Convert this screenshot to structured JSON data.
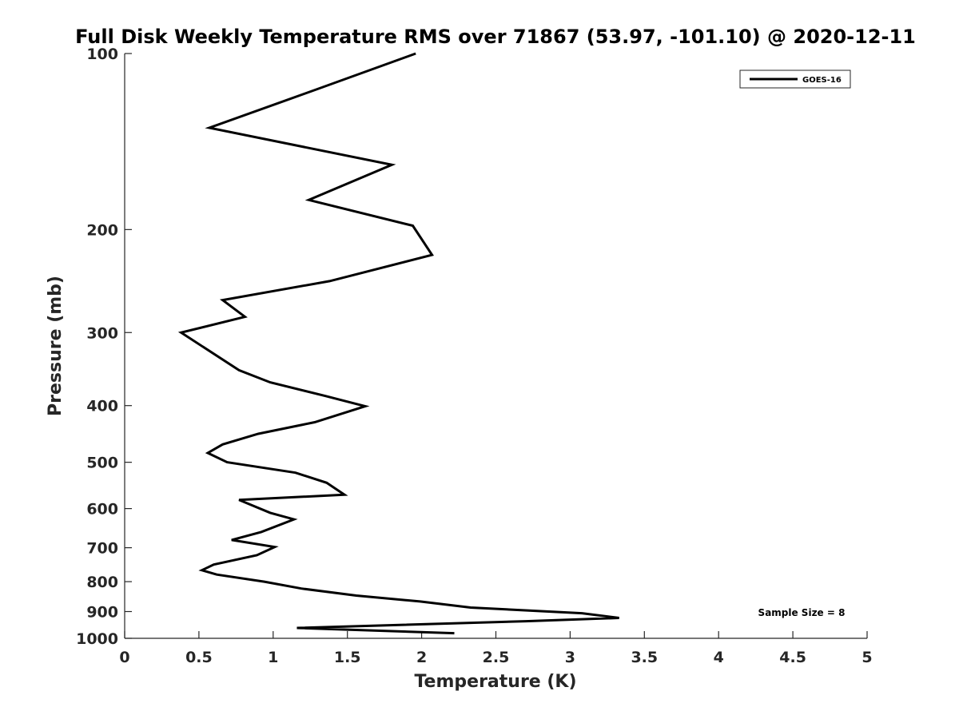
{
  "chart_data": {
    "type": "line",
    "title": "Full Disk Weekly Temperature RMS over 71867 (53.97, -101.10) @ 2020-12-11",
    "xlabel": "Temperature (K)",
    "ylabel": "Pressure (mb)",
    "xlim": [
      0,
      5
    ],
    "ylim": [
      100,
      1000
    ],
    "y_scale": "log",
    "y_reversed": true,
    "x_ticks": [
      0,
      0.5,
      1,
      1.5,
      2,
      2.5,
      3,
      3.5,
      4,
      4.5,
      5
    ],
    "x_tick_labels": [
      "0",
      "0.5",
      "1",
      "1.5",
      "2",
      "2.5",
      "3",
      "3.5",
      "4",
      "4.5",
      "5"
    ],
    "y_ticks": [
      100,
      200,
      300,
      400,
      500,
      600,
      700,
      800,
      900,
      1000
    ],
    "y_tick_labels": [
      "100",
      "200",
      "300",
      "400",
      "500",
      "600",
      "700",
      "800",
      "900",
      "1000"
    ],
    "grid": false,
    "legend_position": "top-right",
    "colors": {
      "line": "#000000",
      "axis": "#262626",
      "background": "#ffffff"
    },
    "series": [
      {
        "name": "GOES-16",
        "x": [
          1.96,
          1.3,
          0.57,
          1.8,
          1.24,
          1.94,
          2.07,
          1.38,
          0.66,
          0.81,
          0.38,
          0.77,
          0.98,
          1.35,
          1.62,
          1.28,
          0.9,
          0.66,
          0.56,
          0.69,
          1.15,
          1.36,
          1.48,
          0.77,
          0.98,
          1.14,
          0.92,
          0.72,
          1.01,
          0.89,
          0.6,
          0.52,
          0.62,
          0.94,
          1.19,
          1.56,
          1.99,
          2.33,
          3.08,
          3.33,
          2.7,
          1.16,
          2.22
        ],
        "y": [
          100,
          115,
          134,
          155,
          178,
          197,
          221,
          245,
          264,
          282,
          300,
          348,
          365,
          385,
          401,
          427,
          447,
          466,
          482,
          500,
          521,
          542,
          568,
          580,
          610,
          626,
          658,
          679,
          698,
          721,
          748,
          765,
          778,
          800,
          822,
          845,
          865,
          886,
          906,
          923,
          935,
          960,
          980
        ]
      }
    ],
    "annotations": [
      {
        "text": "Sample Size = 8"
      }
    ]
  }
}
